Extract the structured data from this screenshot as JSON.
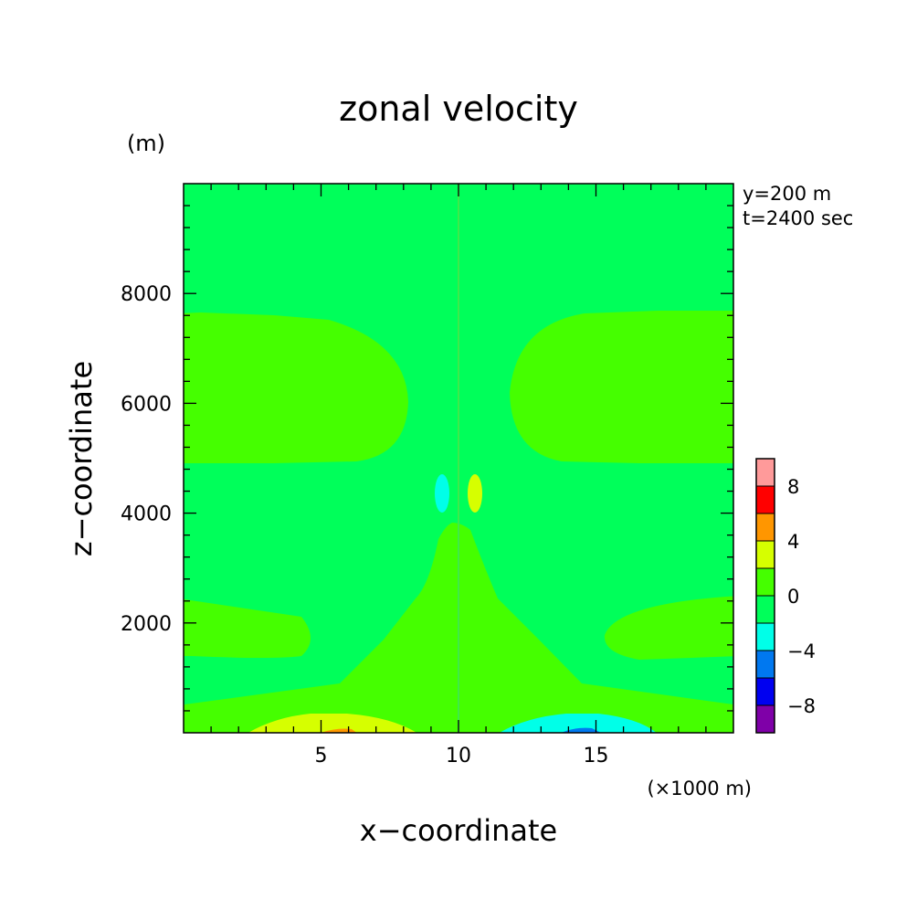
{
  "chart_data": {
    "type": "heatmap",
    "title": "zonal velocity",
    "xlabel": "x−coordinate",
    "ylabel": "z−coordinate",
    "x_units": "(×1000 m)",
    "y_units": "(m)",
    "xlim": [
      0,
      20
    ],
    "ylim": [
      0,
      10000
    ],
    "x_ticks": [
      5,
      10,
      15
    ],
    "y_ticks": [
      2000,
      4000,
      6000,
      8000
    ],
    "annotations": [
      "y=200 m",
      "t=2400 sec"
    ],
    "colorbar": {
      "range": [
        -10,
        10
      ],
      "levels": [
        -10,
        -8,
        -6,
        -4,
        -2,
        0,
        2,
        4,
        6,
        8,
        10
      ],
      "tick_labels": [
        "8",
        "4",
        "0",
        "−4",
        "−8"
      ],
      "tick_values": [
        8,
        4,
        0,
        -4,
        -8
      ],
      "colors": [
        "#7f00a8",
        "#0000f0",
        "#0078f0",
        "#00ffe8",
        "#00ff5a",
        "#45ff00",
        "#d6ff00",
        "#ff9600",
        "#ff0000",
        "#ff9a9a"
      ]
    },
    "regions": [
      {
        "name": "background",
        "value_range": [
          -2,
          0
        ],
        "color": "#00ff5a"
      },
      {
        "name": "upper-left lobe",
        "value_range": [
          0,
          2
        ],
        "color": "#45ff00"
      },
      {
        "name": "upper-right lobe",
        "value_range": [
          0,
          2
        ],
        "color": "#45ff00"
      },
      {
        "name": "central cone",
        "value_range": [
          0,
          2
        ],
        "color": "#45ff00"
      },
      {
        "name": "left surface maximum",
        "value_range": [
          2,
          4
        ],
        "color": "#d6ff00"
      },
      {
        "name": "left surface peak",
        "value_range": [
          4,
          6
        ],
        "color": "#ff9600"
      },
      {
        "name": "right surface minimum",
        "value_range": [
          -4,
          -2
        ],
        "color": "#00ffe8"
      },
      {
        "name": "right surface trough",
        "value_range": [
          -6,
          -4
        ],
        "color": "#0078f0"
      },
      {
        "name": "mid-level negative cell",
        "value_range": [
          -4,
          -2
        ],
        "color": "#00ffe8"
      },
      {
        "name": "mid-level positive cell",
        "value_range": [
          2,
          4
        ],
        "color": "#d6ff00"
      }
    ]
  }
}
